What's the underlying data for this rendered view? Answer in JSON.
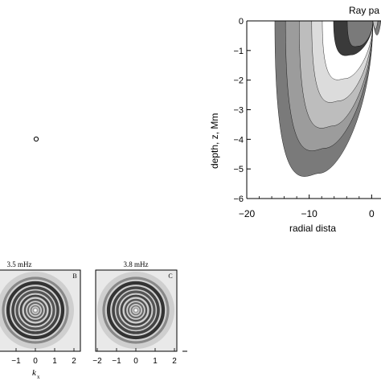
{
  "ray_plot": {
    "title": "Ray pa",
    "ylabel": "depth, z,  Mm",
    "xlabel": "radial dista",
    "xticks": [
      "−20",
      "−10",
      "0"
    ],
    "yticks": [
      "0",
      "−1",
      "−2",
      "−3",
      "−4",
      "−5",
      "−6"
    ],
    "xlim": [
      -20,
      1.5
    ],
    "ylim": [
      -6,
      0
    ],
    "grays": [
      "#7a7a7a",
      "#9c9c9c",
      "#bdbdbd",
      "#dcdcdc",
      "#ffffff",
      "#3a3a3a"
    ],
    "regions": [
      {
        "x_left": -15.5,
        "depth": -5.15
      },
      {
        "x_left": -13.8,
        "depth": -4.3
      },
      {
        "x_left": -11.6,
        "depth": -3.55
      },
      {
        "x_left": -9.6,
        "depth": -2.7
      },
      {
        "x_left": -7.9,
        "depth": -1.95
      },
      {
        "x_left": -6.1,
        "depth": -1.15
      },
      {
        "x_left": -3.9,
        "depth": -0.85
      }
    ]
  },
  "panels": [
    {
      "freq": "3.5 mHz",
      "letter": "B"
    },
    {
      "freq": "3.8 mHz",
      "letter": "C"
    }
  ],
  "kx_ticks": [
    "−1",
    "0",
    "1",
    "2"
  ],
  "kx_ticks_c": [
    "−2",
    "−1",
    "0",
    "1",
    "2"
  ],
  "kx_label": "k",
  "kx_sub": "x"
}
